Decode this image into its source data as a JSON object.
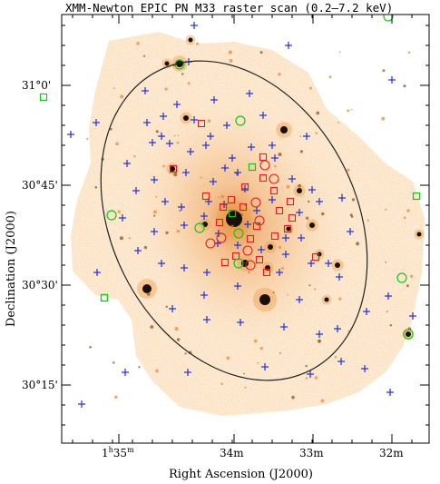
{
  "title": "XMM-Newton EPIC PN M33 raster scan (0.2–7.2 keV)",
  "xlabel": "Right Ascension (J2000)",
  "ylabel": "Declination (J2000)",
  "x_ticks": [
    {
      "h": "1",
      "m": "35",
      "label": "1h35m"
    },
    {
      "label": "34m"
    },
    {
      "label": "33m"
    },
    {
      "label": "32m"
    }
  ],
  "y_ticks": [
    "31°0'",
    "30°45'",
    "30°30'",
    "30°15'"
  ],
  "colors": {
    "background": "#ffffff",
    "diffuse_emission": "#f5b36a",
    "blue_cross": "#1f2fd6",
    "red_marker": "#e02020",
    "green_marker": "#18c418",
    "ellipse": "#222222"
  }
}
